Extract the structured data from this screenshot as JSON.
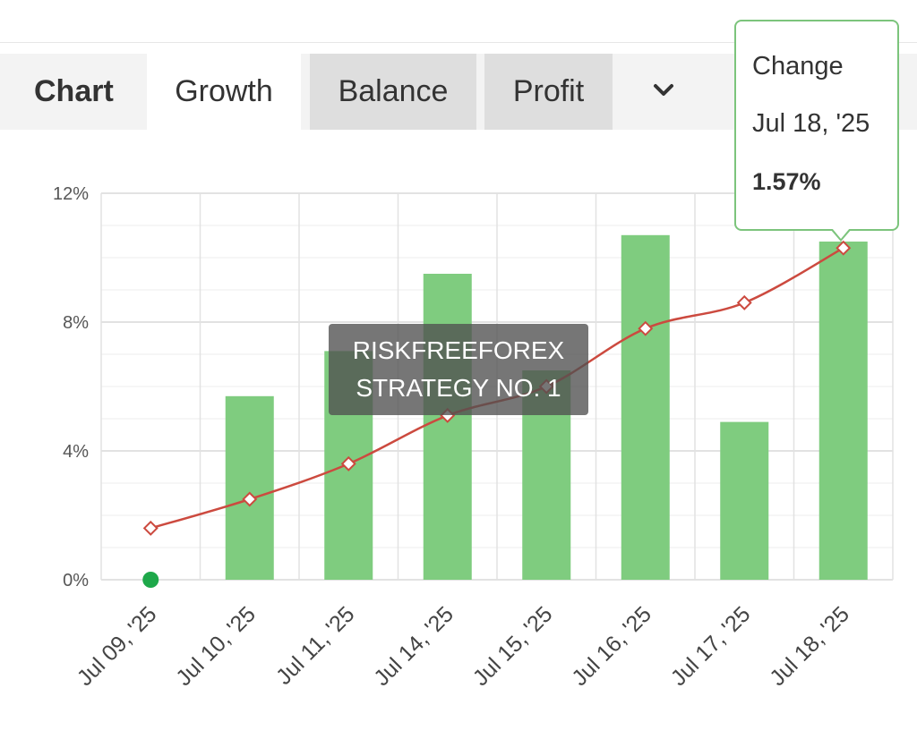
{
  "tabs": {
    "chart_label": "Chart",
    "items": [
      {
        "label": "Growth",
        "active": true
      },
      {
        "label": "Balance",
        "active": false
      },
      {
        "label": "Profit",
        "active": false
      }
    ],
    "more_icon": "chevron-down-icon"
  },
  "tooltip": {
    "title": "Change",
    "date": "Jul 18, '25",
    "value": "1.57%"
  },
  "watermark": {
    "line1": "RISKFREEFOREX",
    "line2": "STRATEGY NO. 1"
  },
  "colors": {
    "bar": "#7fcc7f",
    "line": "#cc4a3f",
    "start_dot": "#1ea84a",
    "tooltip_border": "#7cc47c"
  },
  "chart_data": {
    "type": "bar",
    "categories": [
      "Jul 09, '25",
      "Jul 10, '25",
      "Jul 11, '25",
      "Jul 14, '25",
      "Jul 15, '25",
      "Jul 16, '25",
      "Jul 17, '25",
      "Jul 18, '25"
    ],
    "series": [
      {
        "type": "bar",
        "values": [
          0,
          5.7,
          7.1,
          9.5,
          6.5,
          10.7,
          4.9,
          10.5
        ]
      },
      {
        "type": "line",
        "values": [
          1.6,
          2.5,
          3.6,
          5.1,
          6.0,
          7.8,
          8.6,
          10.3
        ]
      }
    ],
    "yticks": [
      "0%",
      "4%",
      "8%",
      "12%"
    ],
    "ylim": [
      0,
      12
    ],
    "grid": true,
    "start_marker_value": 0
  }
}
